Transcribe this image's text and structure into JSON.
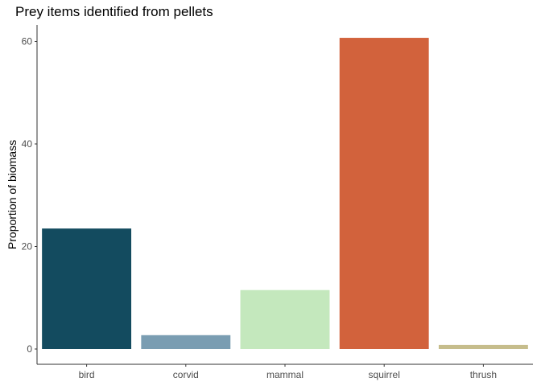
{
  "chart_data": {
    "type": "bar",
    "title": "Prey items identified from pellets",
    "xlabel": "",
    "ylabel": "Proportion of biomass",
    "categories": [
      "bird",
      "corvid",
      "mammal",
      "squirrel",
      "thrush"
    ],
    "values": [
      23.5,
      2.7,
      11.5,
      60.7,
      0.8
    ],
    "colors": [
      "#134b5f",
      "#7a9db2",
      "#c4e8bd",
      "#d2623c",
      "#c6bd8c"
    ],
    "ylim": [
      0,
      63.7
    ],
    "yticks": [
      0,
      20,
      40,
      60
    ],
    "grid": false,
    "legend": "none"
  }
}
